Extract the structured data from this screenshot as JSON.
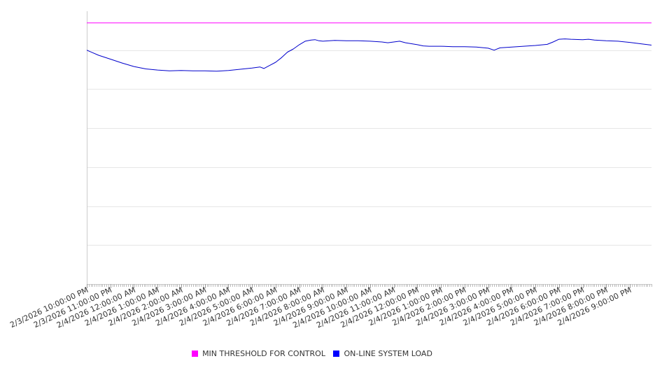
{
  "chart_data": {
    "type": "line",
    "title": "",
    "xlabel": "",
    "ylabel": "",
    "ylim": [
      0,
      7
    ],
    "grid": true,
    "legend_position": "bottom-center",
    "x_range": [
      "2/3/2026 10:00:00 PM",
      "2/4/2026 9:55:00 PM"
    ],
    "tick_labels": [
      "2/3/2026 10:00:00 PM",
      "2/3/2026 11:00:00 PM",
      "2/4/2026 12:00:00 AM",
      "2/4/2026 1:00:00 AM",
      "2/4/2026 2:00:00 AM",
      "2/4/2026 3:00:00 AM",
      "2/4/2026 4:00:00 AM",
      "2/4/2026 5:00:00 AM",
      "2/4/2026 6:00:00 AM",
      "2/4/2026 7:00:00 AM",
      "2/4/2026 8:00:00 AM",
      "2/4/2026 9:00:00 AM",
      "2/4/2026 10:00:00 AM",
      "2/4/2026 11:00:00 AM",
      "2/4/2026 12:00:00 PM",
      "2/4/2026 1:00:00 PM",
      "2/4/2026 2:00:00 PM",
      "2/4/2026 3:00:00 PM",
      "2/4/2026 4:00:00 PM",
      "2/4/2026 5:00:00 PM",
      "2/4/2026 6:00:00 PM",
      "2/4/2026 7:00:00 PM",
      "2/4/2026 8:00:00 PM",
      "2/4/2026 9:00:00 PM"
    ],
    "series": [
      {
        "name": "MIN THRESHOLD FOR CONTROL",
        "color": "#ff00ff",
        "x": [
          "2/3/2026 10:00:00 PM",
          "2/4/2026 9:55:00 PM"
        ],
        "values": [
          6.7,
          6.7
        ]
      },
      {
        "name": "ON-LINE SYSTEM LOAD",
        "color": "#0000cc",
        "x": [
          "2/3/2026 10:00:00 PM",
          "2/3/2026 10:30:00 PM",
          "2/3/2026 11:00:00 PM",
          "2/3/2026 11:30:00 PM",
          "2/4/2026 12:00:00 AM",
          "2/4/2026 12:30:00 AM",
          "2/4/2026 1:00:00 AM",
          "2/4/2026 1:30:00 AM",
          "2/4/2026 2:00:00 AM",
          "2/4/2026 2:30:00 AM",
          "2/4/2026 3:00:00 AM",
          "2/4/2026 3:30:00 AM",
          "2/4/2026 4:00:00 AM",
          "2/4/2026 4:30:00 AM",
          "2/4/2026 5:00:00 AM",
          "2/4/2026 5:20:00 AM",
          "2/4/2026 5:30:00 AM",
          "2/4/2026 5:45:00 AM",
          "2/4/2026 6:00:00 AM",
          "2/4/2026 6:15:00 AM",
          "2/4/2026 6:30:00 AM",
          "2/4/2026 6:45:00 AM",
          "2/4/2026 7:00:00 AM",
          "2/4/2026 7:15:00 AM",
          "2/4/2026 7:30:00 AM",
          "2/4/2026 7:40:00 AM",
          "2/4/2026 7:50:00 AM",
          "2/4/2026 8:00:00 AM",
          "2/4/2026 8:30:00 AM",
          "2/4/2026 9:00:00 AM",
          "2/4/2026 9:30:00 AM",
          "2/4/2026 10:00:00 AM",
          "2/4/2026 10:30:00 AM",
          "2/4/2026 10:45:00 AM",
          "2/4/2026 11:00:00 AM",
          "2/4/2026 11:15:00 AM",
          "2/4/2026 11:30:00 AM",
          "2/4/2026 12:00:00 PM",
          "2/4/2026 12:15:00 PM",
          "2/4/2026 12:30:00 PM",
          "2/4/2026 1:00:00 PM",
          "2/4/2026 1:30:00 PM",
          "2/4/2026 2:00:00 PM",
          "2/4/2026 2:30:00 PM",
          "2/4/2026 3:00:00 PM",
          "2/4/2026 3:15:00 PM",
          "2/4/2026 3:30:00 PM",
          "2/4/2026 4:00:00 PM",
          "2/4/2026 4:30:00 PM",
          "2/4/2026 5:00:00 PM",
          "2/4/2026 5:30:00 PM",
          "2/4/2026 5:45:00 PM",
          "2/4/2026 6:00:00 PM",
          "2/4/2026 6:15:00 PM",
          "2/4/2026 6:30:00 PM",
          "2/4/2026 7:00:00 PM",
          "2/4/2026 7:15:00 PM",
          "2/4/2026 7:30:00 PM",
          "2/4/2026 8:00:00 PM",
          "2/4/2026 8:30:00 PM",
          "2/4/2026 9:00:00 PM",
          "2/4/2026 9:30:00 PM",
          "2/4/2026 9:55:00 PM"
        ],
        "values": [
          6.0,
          5.87,
          5.77,
          5.67,
          5.58,
          5.52,
          5.49,
          5.47,
          5.48,
          5.47,
          5.47,
          5.46,
          5.48,
          5.51,
          5.54,
          5.57,
          5.53,
          5.61,
          5.69,
          5.81,
          5.95,
          6.03,
          6.14,
          6.23,
          6.26,
          6.27,
          6.24,
          6.23,
          6.25,
          6.24,
          6.24,
          6.23,
          6.21,
          6.19,
          6.21,
          6.23,
          6.19,
          6.14,
          6.11,
          6.1,
          6.1,
          6.09,
          6.09,
          6.08,
          6.05,
          6.0,
          6.06,
          6.08,
          6.1,
          6.12,
          6.15,
          6.21,
          6.28,
          6.29,
          6.28,
          6.27,
          6.28,
          6.26,
          6.24,
          6.23,
          6.2,
          6.16,
          6.13
        ]
      }
    ]
  }
}
